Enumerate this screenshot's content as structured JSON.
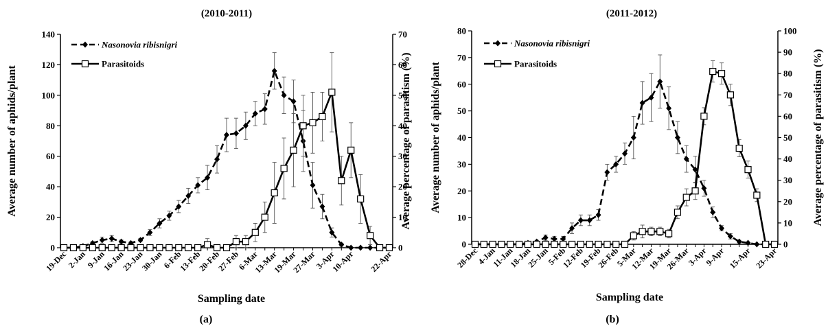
{
  "chart_data": [
    {
      "type": "line",
      "panel_label": "(a)",
      "title": "(2010-2011)",
      "xlabel": "Sampling date",
      "ylabel": "Average number of aphids/plant",
      "y2label": "Average percentage of parasitism (%)",
      "ylim": [
        0,
        140
      ],
      "yticks": [
        0,
        20,
        40,
        60,
        80,
        100,
        120,
        140
      ],
      "y2lim": [
        0,
        70
      ],
      "y2ticks": [
        0,
        10,
        20,
        30,
        40,
        50,
        60,
        70
      ],
      "legend_position": "top-left",
      "x_count": 35,
      "x_tick_labels": [
        "19-Dec",
        "2-Jan",
        "9-Jan",
        "16-Jan",
        "23-Jan",
        "30-Jan",
        "6-Feb",
        "13-Feb",
        "20-Feb",
        "27-Feb",
        "6-Mar",
        "13-Mar",
        "19-Mar",
        "27-Mar",
        "3-Apr",
        "10-Apr",
        "22-Apr"
      ],
      "x_tick_index": [
        0,
        2,
        4,
        6,
        8,
        10,
        12,
        14,
        16,
        18,
        20,
        22,
        24,
        26,
        28,
        30,
        34
      ],
      "series": [
        {
          "name": "Nasonovia ribisnigri",
          "axis": "left",
          "style": "dashed",
          "marker": "diamond",
          "values": [
            0,
            0,
            1,
            3,
            5,
            6,
            4,
            3,
            5,
            10,
            16,
            21,
            27,
            34,
            41,
            46,
            58,
            74,
            75,
            80,
            88,
            91,
            116,
            100,
            96,
            70,
            41,
            27,
            10,
            2,
            0,
            0,
            0,
            0,
            0
          ],
          "errors": [
            0,
            0,
            0.5,
            1,
            2,
            2,
            1,
            1,
            1,
            2,
            3,
            3,
            4,
            5,
            5,
            8,
            9,
            11,
            10,
            9,
            8,
            10,
            12,
            12,
            14,
            20,
            15,
            8,
            3,
            1,
            0.5,
            0,
            0,
            0,
            0
          ]
        },
        {
          "name": "Parasitoids",
          "axis": "right",
          "style": "solid",
          "marker": "square",
          "values": [
            0,
            0,
            0,
            0,
            0,
            0,
            0,
            0,
            0,
            0,
            0,
            0,
            0,
            0,
            0,
            1,
            0,
            0,
            2,
            2,
            5,
            10,
            18,
            26,
            32,
            40,
            41,
            43,
            51,
            22,
            32,
            16,
            4,
            0,
            0
          ],
          "errors": [
            0,
            0,
            0,
            0,
            0,
            0,
            0,
            0,
            0,
            0,
            0,
            0,
            0,
            0,
            0,
            2,
            0,
            0,
            2,
            2,
            3,
            5,
            10,
            10,
            12,
            10,
            10,
            8,
            13,
            8,
            9,
            8,
            3,
            0,
            0
          ]
        }
      ]
    },
    {
      "type": "line",
      "panel_label": "(b)",
      "title": "(2011-2012)",
      "xlabel": "Sampling date",
      "ylabel": "Average number of aphids/plant",
      "y2label": "Average percentage of parasitism (%)",
      "ylim": [
        0,
        80
      ],
      "yticks": [
        0,
        10,
        20,
        30,
        40,
        50,
        60,
        70,
        80
      ],
      "y2lim": [
        0,
        100
      ],
      "y2ticks": [
        0,
        10,
        20,
        30,
        40,
        50,
        60,
        70,
        80,
        90,
        100
      ],
      "legend_position": "top-left",
      "x_count": 35,
      "x_tick_labels": [
        "28-Dec",
        "4-Jan",
        "11-Jan",
        "18-Jan",
        "25-Jan",
        "5-Feb",
        "12-Feb",
        "19-Feb",
        "26-Feb",
        "5-Mar",
        "12-Mar",
        "19-Mar",
        "26-Mar",
        "3-Apr",
        "9-Apr",
        "15-Apr",
        "23-Apr"
      ],
      "x_tick_index": [
        0,
        2,
        4,
        6,
        8,
        10,
        12,
        14,
        16,
        18,
        20,
        22,
        24,
        26,
        28,
        31,
        34
      ],
      "series": [
        {
          "name": "Nasonovia ribisnigri",
          "axis": "left",
          "style": "dashed",
          "marker": "diamond",
          "values": [
            0,
            0,
            0,
            0,
            0,
            0,
            0.5,
            1,
            2.5,
            2,
            2,
            6,
            9,
            9,
            11,
            27,
            30,
            34,
            40,
            53,
            55,
            61,
            51,
            40,
            32,
            28,
            21,
            12,
            6,
            3,
            1,
            0.5,
            0,
            0,
            0
          ],
          "errors": [
            0,
            0,
            0,
            0,
            0,
            0,
            0.3,
            0.5,
            1,
            1,
            1,
            2,
            2,
            2,
            2,
            3,
            3,
            4,
            8,
            8,
            9,
            10,
            8,
            6,
            5,
            5,
            3,
            2,
            1,
            1,
            0.5,
            0,
            0,
            0,
            0
          ]
        },
        {
          "name": "Parasitoids",
          "axis": "right",
          "style": "solid",
          "marker": "square",
          "values": [
            0,
            0,
            0,
            0,
            0,
            0,
            0,
            0,
            0,
            0,
            0,
            0,
            0,
            0,
            0,
            0,
            0,
            0,
            4,
            6,
            6,
            6,
            5,
            15,
            22,
            25,
            60,
            81,
            80,
            70,
            45,
            35,
            23,
            0,
            0
          ],
          "errors": [
            0,
            0,
            0,
            0,
            0,
            0,
            0,
            0,
            0,
            0,
            0,
            0,
            0,
            0,
            0,
            0,
            0,
            0,
            2,
            3,
            2,
            2,
            2,
            3,
            4,
            4,
            4,
            5,
            5,
            5,
            4,
            4,
            3,
            0,
            0
          ]
        }
      ]
    }
  ]
}
